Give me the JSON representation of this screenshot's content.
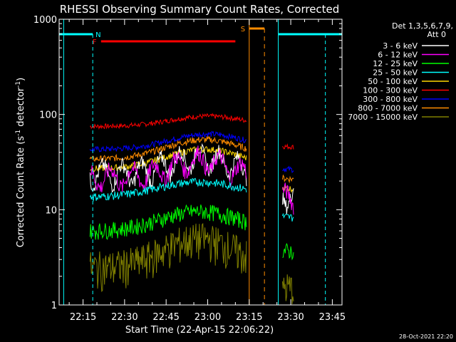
{
  "chart_data": {
    "type": "line",
    "title": "RHESSI Observing Summary Count Rates, Corrected",
    "xlabel": "Start Time (22-Apr-15 22:06:22)",
    "ylabel": "Corrected Count Rate (s",
    "ylabel_exp": "-1",
    "ylabel_tail": " detector",
    "ylabel_end": ")",
    "footer": "28-Oct-2021 22:20",
    "x_ticks": [
      "22:15",
      "22:30",
      "22:45",
      "23:00",
      "23:15",
      "23:30",
      "23:45"
    ],
    "y_ticks": [
      "1",
      "10",
      "100",
      "1000"
    ],
    "yscale": "log",
    "ylim": [
      1,
      1000
    ],
    "xlim": [
      "22:06:22",
      "23:48:30"
    ],
    "legend_title_1": "Det 1,3,5,6,7,9,",
    "legend_title_2": "Att 0",
    "legend_position": "right",
    "series": [
      {
        "name": "3 - 6 keV",
        "color": "#ffffff"
      },
      {
        "name": "6 - 12 keV",
        "color": "#ff00ff"
      },
      {
        "name": "12 - 25 keV",
        "color": "#00ff00"
      },
      {
        "name": "25 - 50 keV",
        "color": "#00ffff"
      },
      {
        "name": "50 - 100 keV",
        "color": "#ffd700"
      },
      {
        "name": "100 - 300 keV",
        "color": "#ff0000"
      },
      {
        "name": "300 - 800 keV",
        "color": "#0000ff"
      },
      {
        "name": "800 - 7000 keV",
        "color": "#ff8c00"
      },
      {
        "name": "7000 - 15000 keV",
        "color": "#808000"
      }
    ],
    "flags": [
      {
        "label": "N",
        "color": "#00ffff"
      },
      {
        "label": "F",
        "color": "#ff0000"
      },
      {
        "label": "S",
        "color": "#ff8c00"
      }
    ]
  }
}
